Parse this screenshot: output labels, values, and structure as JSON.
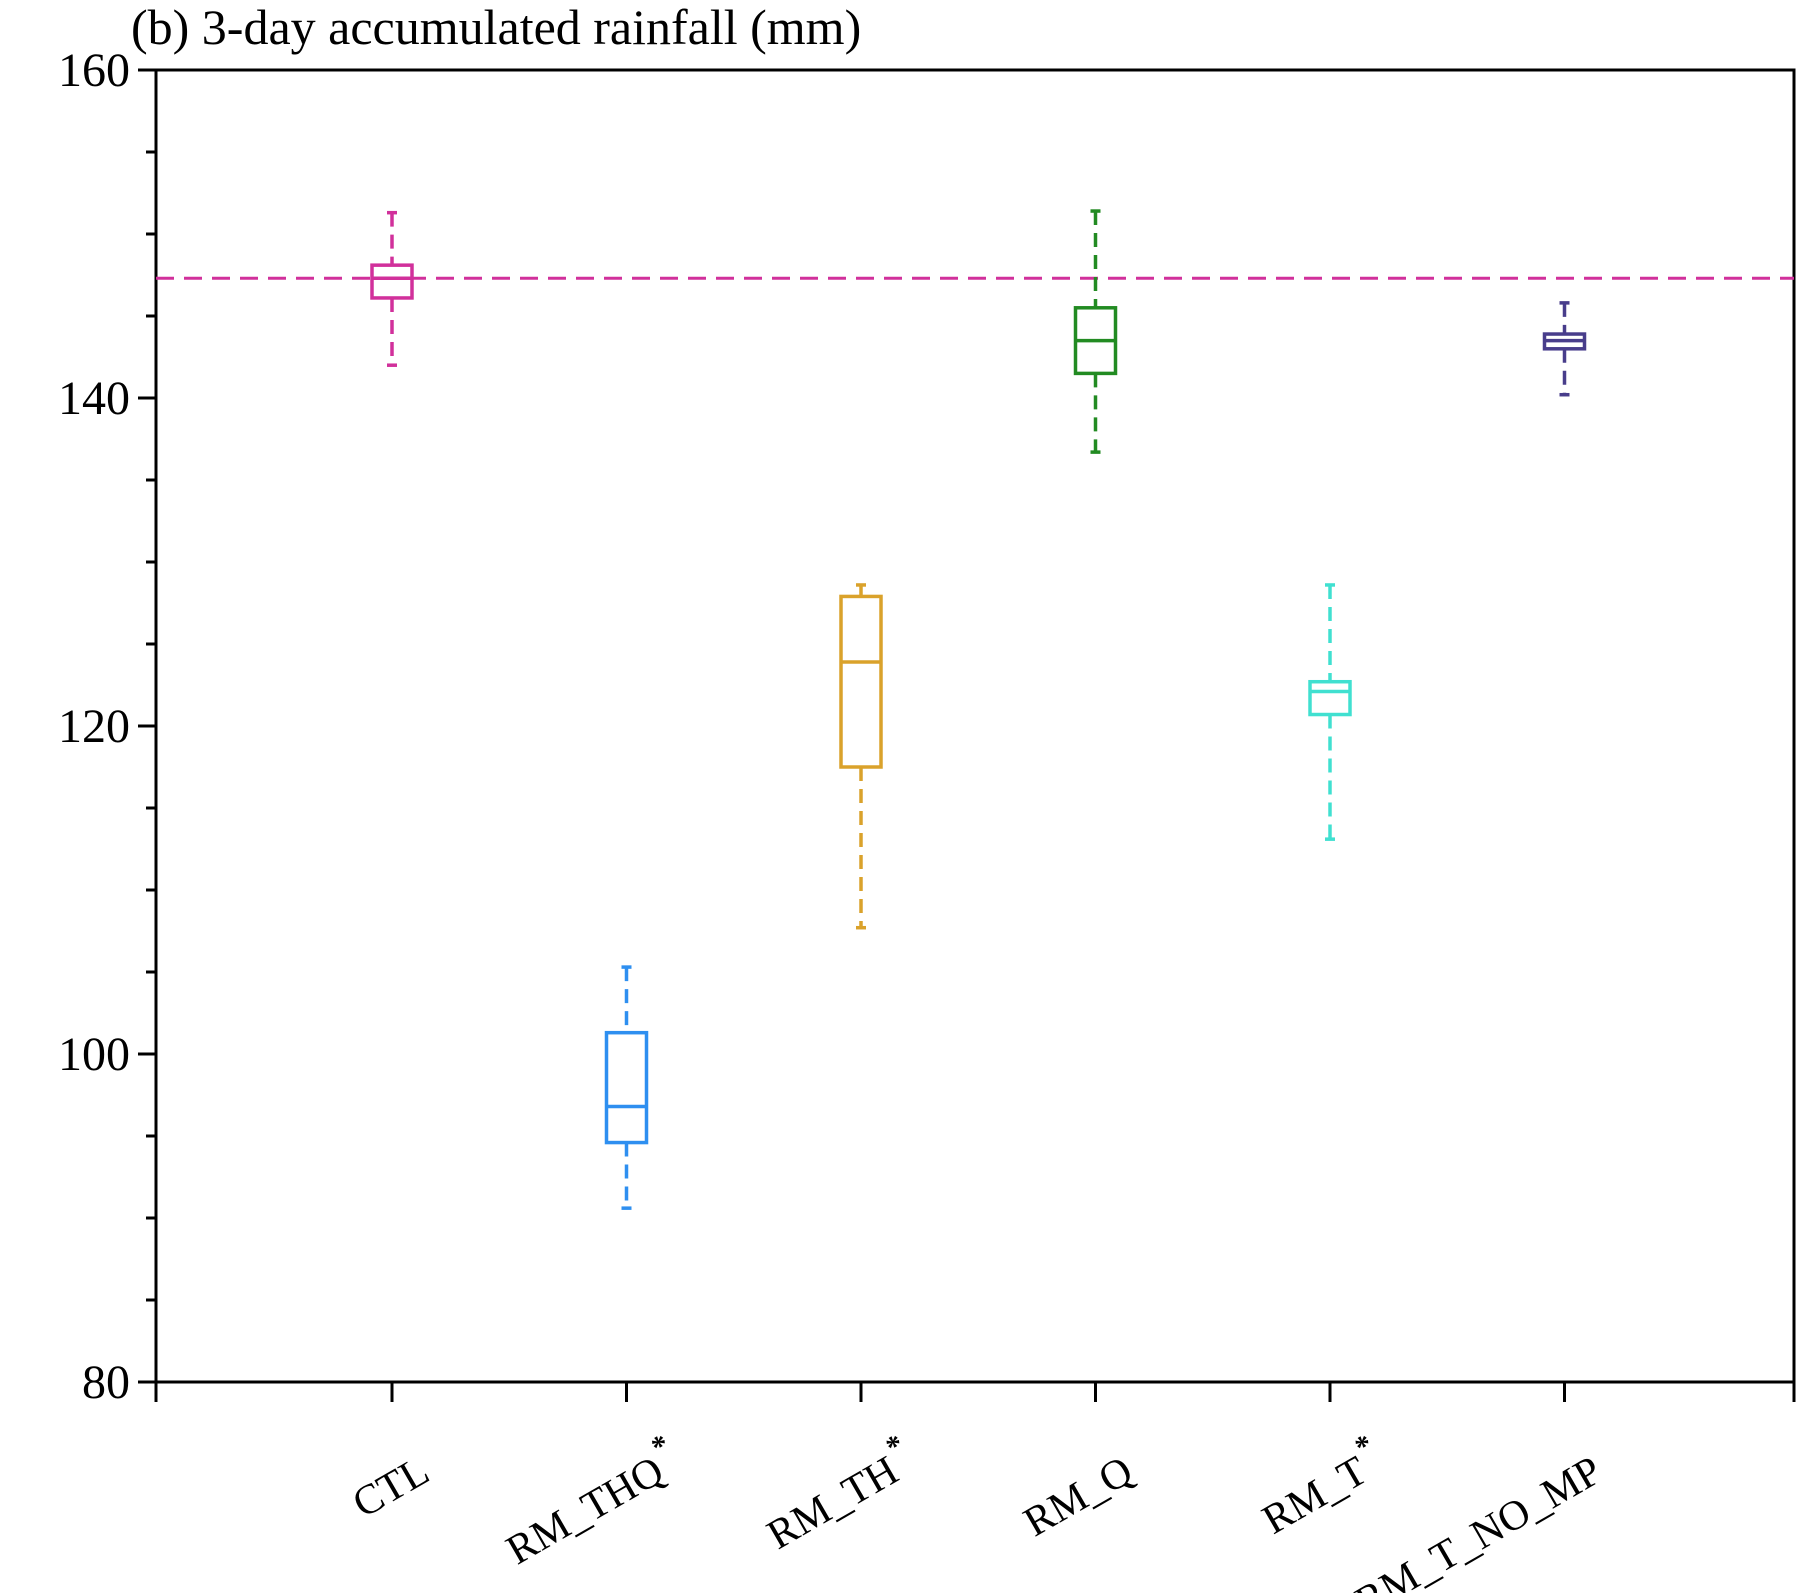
{
  "chart_data": {
    "type": "boxplot",
    "title": "(b) 3-day accumulated rainfall (mm)",
    "xlabel": "",
    "ylabel": "",
    "ylim": [
      80,
      160
    ],
    "yticks": [
      80,
      100,
      120,
      140,
      160
    ],
    "yminor_step": 5,
    "grid": false,
    "reference_line": {
      "value": 147.3,
      "color": "#d1309b",
      "style": "dashed"
    },
    "categories": [
      {
        "name": "CTL",
        "significant": false,
        "color": "#d1309b",
        "whisker_low": 142.0,
        "q1": 146.1,
        "median": 147.3,
        "q3": 148.1,
        "whisker_high": 151.3
      },
      {
        "name": "RM_THQ",
        "significant": true,
        "color": "#2e8ff0",
        "whisker_low": 90.6,
        "q1": 94.6,
        "median": 96.8,
        "q3": 101.3,
        "whisker_high": 105.3
      },
      {
        "name": "RM_TH",
        "significant": true,
        "color": "#daa22b",
        "whisker_low": 107.7,
        "q1": 117.5,
        "median": 123.9,
        "q3": 127.9,
        "whisker_high": 128.6
      },
      {
        "name": "RM_Q",
        "significant": false,
        "color": "#228b22",
        "whisker_low": 136.7,
        "q1": 141.5,
        "median": 143.5,
        "q3": 145.5,
        "whisker_high": 151.4
      },
      {
        "name": "RM_T",
        "significant": true,
        "color": "#40e0d0",
        "whisker_low": 113.1,
        "q1": 120.7,
        "median": 122.1,
        "q3": 122.7,
        "whisker_high": 128.6
      },
      {
        "name": "RM_T_NO_MP",
        "significant": false,
        "color": "#483d8b",
        "whisker_low": 140.2,
        "q1": 143.0,
        "median": 143.5,
        "q3": 143.9,
        "whisker_high": 145.8
      }
    ],
    "significance_marker": "*"
  }
}
